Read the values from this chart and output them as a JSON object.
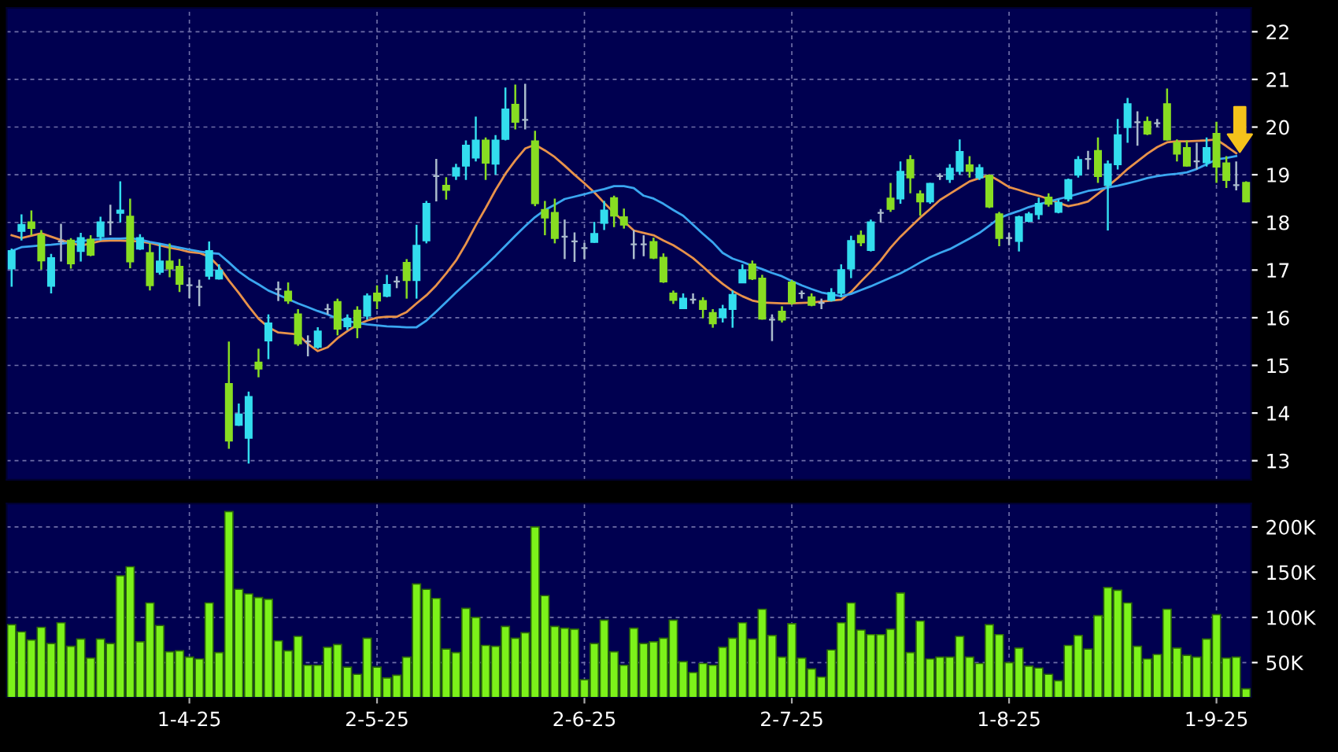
{
  "chart_data": [
    {
      "type": "candlestick",
      "tick_labels": "y",
      "grid": true,
      "ylim": [
        12.6,
        22.5
      ],
      "yticks": [
        13,
        14,
        15,
        16,
        17,
        18,
        19,
        20,
        21,
        22
      ],
      "categories": [
        null,
        null,
        null,
        null,
        null,
        null,
        null,
        null,
        null,
        null,
        null,
        null,
        null,
        null,
        null,
        null,
        null,
        null,
        null,
        null,
        null,
        null,
        null,
        null,
        null,
        null,
        null,
        null,
        null,
        null,
        null,
        null,
        null,
        null,
        null,
        null,
        null,
        null,
        null,
        null,
        null,
        null,
        null,
        null,
        null,
        null,
        null,
        null,
        null,
        null,
        null,
        null,
        null,
        null,
        null,
        null,
        null,
        null,
        null,
        null,
        null,
        null,
        null,
        null,
        null,
        null,
        null,
        null,
        null,
        null,
        null,
        null,
        null,
        null,
        null,
        null,
        null,
        null,
        null,
        null,
        null,
        null,
        null,
        null,
        null,
        null,
        null,
        null,
        null,
        null,
        null,
        null,
        null,
        null,
        null,
        null,
        null,
        null,
        null,
        null,
        null,
        null,
        null,
        null,
        null,
        null,
        null,
        null,
        null,
        null,
        null,
        null,
        null,
        null,
        null,
        null,
        null,
        null,
        null,
        null,
        null,
        null,
        null,
        null,
        null,
        null
      ],
      "ohlc": [
        [
          17.03,
          17.45,
          16.65,
          17.4
        ],
        [
          17.82,
          18.17,
          17.62,
          17.95
        ],
        [
          18.0,
          18.25,
          17.73,
          17.88
        ],
        [
          17.73,
          17.84,
          17.01,
          17.2
        ],
        [
          16.67,
          17.34,
          16.51,
          17.25
        ],
        [
          17.6,
          17.97,
          17.18,
          17.6
        ],
        [
          17.62,
          17.67,
          17.03,
          17.14
        ],
        [
          17.4,
          17.78,
          17.18,
          17.67
        ],
        [
          17.64,
          17.73,
          17.29,
          17.32
        ],
        [
          17.71,
          18.12,
          17.62,
          18.0
        ],
        [
          18.0,
          18.37,
          17.73,
          18.0
        ],
        [
          18.2,
          18.86,
          18.0,
          18.25
        ],
        [
          18.12,
          18.5,
          17.04,
          17.18
        ],
        [
          17.45,
          17.75,
          17.42,
          17.67
        ],
        [
          17.36,
          17.56,
          16.57,
          16.68
        ],
        [
          16.96,
          17.56,
          16.9,
          17.18
        ],
        [
          17.18,
          17.56,
          16.85,
          17.03
        ],
        [
          17.07,
          17.23,
          16.54,
          16.71
        ],
        [
          16.68,
          16.85,
          16.41,
          16.68
        ],
        [
          16.65,
          16.8,
          16.24,
          16.65
        ],
        [
          16.88,
          17.6,
          16.8,
          17.4
        ],
        [
          16.82,
          17.12,
          16.8,
          16.99
        ],
        [
          14.61,
          15.5,
          13.25,
          13.42
        ],
        [
          13.75,
          14.2,
          13.73,
          13.97
        ],
        [
          13.48,
          14.45,
          12.94,
          14.34
        ],
        [
          15.06,
          15.35,
          14.75,
          14.93
        ],
        [
          15.52,
          16.07,
          15.13,
          15.88
        ],
        [
          16.6,
          16.76,
          16.35,
          16.6
        ],
        [
          16.55,
          16.74,
          16.29,
          16.36
        ],
        [
          16.07,
          16.18,
          15.41,
          15.46
        ],
        [
          15.5,
          15.63,
          15.19,
          15.5
        ],
        [
          15.39,
          15.8,
          15.35,
          15.71
        ],
        [
          16.18,
          16.29,
          16.07,
          16.18
        ],
        [
          16.33,
          16.4,
          15.63,
          15.77
        ],
        [
          15.82,
          16.07,
          15.74,
          15.98
        ],
        [
          16.15,
          16.24,
          15.57,
          15.8
        ],
        [
          16.04,
          16.51,
          15.96,
          16.45
        ],
        [
          16.51,
          16.68,
          16.18,
          16.36
        ],
        [
          16.46,
          16.9,
          16.43,
          16.69
        ],
        [
          16.76,
          16.87,
          16.62,
          16.76
        ],
        [
          17.15,
          17.23,
          16.4,
          16.79
        ],
        [
          16.79,
          17.95,
          16.4,
          17.51
        ],
        [
          17.62,
          18.45,
          17.56,
          18.39
        ],
        [
          18.97,
          19.33,
          18.44,
          18.97
        ],
        [
          18.77,
          18.95,
          18.48,
          18.68
        ],
        [
          18.98,
          19.23,
          18.89,
          19.14
        ],
        [
          19.19,
          19.72,
          18.89,
          19.61
        ],
        [
          19.36,
          20.22,
          19.28,
          19.72
        ],
        [
          19.72,
          19.78,
          18.89,
          19.25
        ],
        [
          19.23,
          19.83,
          19.0,
          19.72
        ],
        [
          19.75,
          20.83,
          19.72,
          20.37
        ],
        [
          20.47,
          20.89,
          19.95,
          20.11
        ],
        [
          20.15,
          20.91,
          19.95,
          20.15
        ],
        [
          19.7,
          19.92,
          18.34,
          18.4
        ],
        [
          18.26,
          18.45,
          17.73,
          18.1
        ],
        [
          18.2,
          18.5,
          17.56,
          17.67
        ],
        [
          17.7,
          18.06,
          17.23,
          17.7
        ],
        [
          17.6,
          17.79,
          17.17,
          17.6
        ],
        [
          17.46,
          17.57,
          17.23,
          17.46
        ],
        [
          17.59,
          18.01,
          17.57,
          17.76
        ],
        [
          17.99,
          18.45,
          17.84,
          18.25
        ],
        [
          18.51,
          18.56,
          17.9,
          18.14
        ],
        [
          18.11,
          18.29,
          17.87,
          17.95
        ],
        [
          17.54,
          17.84,
          17.23,
          17.54
        ],
        [
          17.54,
          17.73,
          17.29,
          17.54
        ],
        [
          17.59,
          17.68,
          17.23,
          17.26
        ],
        [
          17.26,
          17.35,
          16.73,
          16.76
        ],
        [
          16.51,
          16.57,
          16.29,
          16.37
        ],
        [
          16.2,
          16.51,
          16.18,
          16.4
        ],
        [
          16.38,
          16.51,
          16.29,
          16.38
        ],
        [
          16.35,
          16.43,
          15.99,
          16.18
        ],
        [
          16.1,
          16.18,
          15.79,
          15.88
        ],
        [
          16.01,
          16.27,
          15.9,
          16.18
        ],
        [
          16.18,
          16.57,
          15.79,
          16.48
        ],
        [
          16.74,
          17.12,
          16.73,
          17.0
        ],
        [
          17.12,
          17.2,
          16.79,
          16.82
        ],
        [
          16.82,
          16.9,
          15.96,
          15.98
        ],
        [
          15.96,
          16.07,
          15.51,
          15.96
        ],
        [
          16.13,
          16.24,
          15.9,
          15.96
        ],
        [
          16.74,
          16.79,
          16.27,
          16.32
        ],
        [
          16.51,
          16.57,
          16.4,
          16.51
        ],
        [
          16.43,
          16.51,
          16.24,
          16.27
        ],
        [
          16.31,
          16.4,
          16.18,
          16.31
        ],
        [
          16.37,
          16.62,
          16.34,
          16.52
        ],
        [
          16.52,
          17.12,
          16.43,
          17.0
        ],
        [
          17.03,
          17.72,
          16.83,
          17.61
        ],
        [
          17.72,
          17.83,
          17.5,
          17.58
        ],
        [
          17.42,
          18.06,
          17.39,
          18.0
        ],
        [
          18.2,
          18.28,
          18.0,
          18.2
        ],
        [
          18.5,
          18.83,
          18.22,
          18.28
        ],
        [
          18.5,
          19.28,
          18.39,
          19.06
        ],
        [
          19.31,
          19.41,
          18.61,
          18.94
        ],
        [
          18.59,
          18.67,
          18.14,
          18.44
        ],
        [
          18.44,
          18.83,
          18.39,
          18.81
        ],
        [
          18.97,
          19.03,
          18.89,
          18.97
        ],
        [
          18.91,
          19.22,
          18.83,
          19.13
        ],
        [
          19.08,
          19.74,
          19.0,
          19.48
        ],
        [
          19.2,
          19.39,
          18.94,
          19.08
        ],
        [
          18.94,
          19.22,
          18.89,
          19.14
        ],
        [
          18.98,
          19.0,
          18.3,
          18.33
        ],
        [
          18.17,
          18.22,
          17.5,
          17.67
        ],
        [
          17.67,
          17.78,
          17.52,
          17.67
        ],
        [
          17.61,
          18.14,
          17.39,
          18.11
        ],
        [
          18.03,
          18.22,
          18.0,
          18.17
        ],
        [
          18.17,
          18.52,
          18.06,
          18.39
        ],
        [
          18.52,
          18.61,
          18.33,
          18.39
        ],
        [
          18.22,
          18.48,
          18.19,
          18.41
        ],
        [
          18.5,
          18.92,
          18.44,
          18.89
        ],
        [
          19.0,
          19.39,
          18.94,
          19.31
        ],
        [
          19.33,
          19.5,
          19.11,
          19.33
        ],
        [
          19.5,
          19.78,
          18.83,
          18.97
        ],
        [
          18.78,
          19.3,
          17.83,
          19.22
        ],
        [
          19.22,
          20.17,
          19.11,
          19.83
        ],
        [
          20.0,
          20.61,
          19.67,
          20.48
        ],
        [
          20.1,
          20.33,
          19.61,
          20.1
        ],
        [
          20.11,
          20.22,
          19.83,
          19.86
        ],
        [
          20.08,
          20.17,
          20.0,
          20.08
        ],
        [
          20.48,
          20.81,
          19.72,
          19.74
        ],
        [
          19.67,
          19.74,
          19.28,
          19.44
        ],
        [
          19.56,
          19.72,
          19.17,
          19.19
        ],
        [
          19.28,
          19.67,
          19.11,
          19.28
        ],
        [
          19.26,
          19.78,
          19.17,
          19.56
        ],
        [
          19.86,
          20.11,
          18.83,
          19.17
        ],
        [
          19.24,
          19.39,
          18.72,
          18.89
        ],
        [
          18.78,
          19.28,
          18.67,
          18.78
        ],
        [
          18.83,
          18.86,
          18.42,
          18.44
        ]
      ],
      "colors": [
        "#33ddee",
        "#33ddee",
        "#88dd22",
        "#88dd22",
        "#33ddee",
        "#aabbcc",
        "#88dd22",
        "#33ddee",
        "#88dd22",
        "#33ddee",
        "#aabbcc",
        "#33ddee",
        "#88dd22",
        "#33ddee",
        "#88dd22",
        "#33ddee",
        "#88dd22",
        "#88dd22",
        "#aabbcc",
        "#aabbcc",
        "#33ddee",
        "#33ddee",
        "#88dd22",
        "#33ddee",
        "#33ddee",
        "#88dd22",
        "#33ddee",
        "#aabbcc",
        "#88dd22",
        "#88dd22",
        "#aabbcc",
        "#33ddee",
        "#aabbcc",
        "#88dd22",
        "#33ddee",
        "#88dd22",
        "#33ddee",
        "#88dd22",
        "#33ddee",
        "#aabbcc",
        "#88dd22",
        "#33ddee",
        "#33ddee",
        "#aabbcc",
        "#88dd22",
        "#33ddee",
        "#33ddee",
        "#33ddee",
        "#88dd22",
        "#33ddee",
        "#33ddee",
        "#88dd22",
        "#aabbcc",
        "#88dd22",
        "#88dd22",
        "#88dd22",
        "#aabbcc",
        "#aabbcc",
        "#aabbcc",
        "#33ddee",
        "#33ddee",
        "#88dd22",
        "#88dd22",
        "#aabbcc",
        "#aabbcc",
        "#88dd22",
        "#88dd22",
        "#88dd22",
        "#33ddee",
        "#aabbcc",
        "#88dd22",
        "#88dd22",
        "#33ddee",
        "#33ddee",
        "#33ddee",
        "#88dd22",
        "#88dd22",
        "#aabbcc",
        "#88dd22",
        "#88dd22",
        "#aabbcc",
        "#88dd22",
        "#aabbcc",
        "#33ddee",
        "#33ddee",
        "#33ddee",
        "#88dd22",
        "#33ddee",
        "#aabbcc",
        "#88dd22",
        "#33ddee",
        "#88dd22",
        "#88dd22",
        "#33ddee",
        "#aabbcc",
        "#33ddee",
        "#33ddee",
        "#88dd22",
        "#33ddee",
        "#88dd22",
        "#88dd22",
        "#aabbcc",
        "#33ddee",
        "#33ddee",
        "#33ddee",
        "#88dd22",
        "#33ddee",
        "#33ddee",
        "#33ddee",
        "#aabbcc",
        "#88dd22",
        "#33ddee",
        "#33ddee",
        "#33ddee",
        "#aabbcc",
        "#88dd22",
        "#aabbcc",
        "#88dd22",
        "#88dd22",
        "#88dd22",
        "#aabbcc",
        "#33ddee",
        "#88dd22",
        "#88dd22",
        "#aabbcc",
        "#88dd22"
      ],
      "series": [
        {
          "type": "line",
          "color": "#e8924a",
          "values": [
            17.73,
            17.67,
            17.72,
            17.77,
            17.7,
            17.63,
            17.57,
            17.51,
            17.56,
            17.61,
            17.62,
            17.62,
            17.61,
            17.6,
            17.57,
            17.52,
            17.47,
            17.43,
            17.38,
            17.36,
            17.28,
            17.07,
            16.78,
            16.52,
            16.24,
            15.98,
            15.8,
            15.69,
            15.67,
            15.65,
            15.45,
            15.3,
            15.38,
            15.57,
            15.72,
            15.85,
            15.94,
            16.0,
            16.02,
            16.02,
            16.12,
            16.3,
            16.47,
            16.68,
            16.93,
            17.2,
            17.55,
            17.94,
            18.3,
            18.68,
            19.02,
            19.3,
            19.55,
            19.63,
            19.51,
            19.37,
            19.19,
            19.0,
            18.82,
            18.63,
            18.41,
            18.2,
            18.02,
            17.83,
            17.78,
            17.73,
            17.62,
            17.52,
            17.39,
            17.25,
            17.07,
            16.88,
            16.71,
            16.56,
            16.45,
            16.36,
            16.32,
            16.31,
            16.3,
            16.3,
            16.31,
            16.32,
            16.34,
            16.36,
            16.38,
            16.54,
            16.76,
            16.97,
            17.2,
            17.47,
            17.7,
            17.9,
            18.1,
            18.28,
            18.47,
            18.6,
            18.73,
            18.86,
            18.93,
            18.99,
            18.87,
            18.74,
            18.68,
            18.61,
            18.56,
            18.49,
            18.41,
            18.34,
            18.38,
            18.44,
            18.6,
            18.76,
            18.93,
            19.12,
            19.28,
            19.44,
            19.58,
            19.68,
            19.7,
            19.7,
            19.71,
            19.72,
            19.74,
            19.6,
            19.45,
            null
          ]
        },
        {
          "type": "line",
          "color": "#3aa6f0",
          "values": [
            17.4,
            17.48,
            17.5,
            17.52,
            17.53,
            17.55,
            17.58,
            17.61,
            17.63,
            17.65,
            17.66,
            17.66,
            17.67,
            17.64,
            17.59,
            17.55,
            17.51,
            17.47,
            17.43,
            17.39,
            17.36,
            17.34,
            17.16,
            16.97,
            16.82,
            16.7,
            16.57,
            16.48,
            16.39,
            16.3,
            16.22,
            16.14,
            16.07,
            15.98,
            15.93,
            15.89,
            15.86,
            15.84,
            15.82,
            15.81,
            15.8,
            15.8,
            15.94,
            16.13,
            16.33,
            16.53,
            16.72,
            16.91,
            17.1,
            17.3,
            17.51,
            17.72,
            17.92,
            18.11,
            18.26,
            18.37,
            18.49,
            18.54,
            18.59,
            18.65,
            18.7,
            18.76,
            18.76,
            18.72,
            18.56,
            18.5,
            18.39,
            18.26,
            18.14,
            17.95,
            17.76,
            17.58,
            17.36,
            17.24,
            17.17,
            17.09,
            17.02,
            16.94,
            16.87,
            16.77,
            16.68,
            16.6,
            16.53,
            16.49,
            16.45,
            16.5,
            16.58,
            16.66,
            16.75,
            16.84,
            16.93,
            17.04,
            17.16,
            17.27,
            17.36,
            17.44,
            17.55,
            17.66,
            17.78,
            17.93,
            18.09,
            18.17,
            18.24,
            18.32,
            18.38,
            18.43,
            18.49,
            18.54,
            18.6,
            18.66,
            18.69,
            18.73,
            18.77,
            18.82,
            18.87,
            18.93,
            18.97,
            19.0,
            19.02,
            19.05,
            19.12,
            19.22,
            19.32,
            19.35,
            19.39,
            null
          ]
        }
      ]
    },
    {
      "type": "bar",
      "grid": true,
      "color": "#7cf21a",
      "ylim": [
        12000,
        226000
      ],
      "yticks": [
        {
          "value": 50000,
          "label": "50K"
        },
        {
          "value": 100000,
          "label": "100K"
        },
        {
          "value": 150000,
          "label": "150K"
        },
        {
          "value": 200000,
          "label": "200K"
        }
      ],
      "categories": [
        null,
        null,
        null,
        null,
        null,
        null,
        null,
        null,
        null,
        null,
        null,
        null,
        null,
        null,
        null,
        null,
        null,
        null,
        "1-4-25",
        null,
        null,
        null,
        null,
        null,
        null,
        null,
        null,
        null,
        null,
        null,
        null,
        null,
        null,
        null,
        null,
        null,
        null,
        "2-5-25",
        null,
        null,
        null,
        null,
        null,
        null,
        null,
        null,
        null,
        null,
        null,
        null,
        null,
        null,
        null,
        null,
        null,
        null,
        null,
        null,
        "2-6-25",
        null,
        null,
        null,
        null,
        null,
        null,
        null,
        null,
        null,
        null,
        null,
        null,
        null,
        null,
        null,
        null,
        null,
        null,
        null,
        null,
        "2-7-25",
        null,
        null,
        null,
        null,
        null,
        null,
        null,
        null,
        null,
        null,
        null,
        null,
        null,
        null,
        null,
        null,
        null,
        null,
        null,
        null,
        null,
        "1-8-25",
        null,
        null,
        null,
        null,
        null,
        null,
        null,
        null,
        null,
        null,
        null,
        null,
        null,
        null,
        null,
        null,
        null,
        null,
        null,
        null,
        "1-9-25",
        null,
        null,
        null
      ],
      "values": [
        92000,
        84000,
        75000,
        89000,
        71000,
        94000,
        68000,
        76000,
        55000,
        76000,
        71000,
        146000,
        156000,
        73000,
        116000,
        91000,
        62000,
        63000,
        56000,
        54000,
        116000,
        61000,
        217000,
        131000,
        126000,
        122000,
        120000,
        74000,
        63000,
        79000,
        47000,
        47000,
        67000,
        70000,
        45000,
        37000,
        77000,
        45000,
        33000,
        36000,
        56000,
        137000,
        131000,
        121000,
        65000,
        61000,
        110000,
        100000,
        69000,
        68000,
        90000,
        77000,
        83000,
        200000,
        124000,
        90000,
        88000,
        87000,
        31000,
        71000,
        97000,
        62000,
        47000,
        88000,
        71000,
        73000,
        77000,
        97000,
        51000,
        39000,
        49000,
        47000,
        67000,
        77000,
        94000,
        76000,
        109000,
        80000,
        56000,
        93000,
        55000,
        43000,
        34000,
        64000,
        94000,
        116000,
        86000,
        81000,
        81000,
        87000,
        127000,
        61000,
        96000,
        54000,
        56000,
        56000,
        79000,
        56000,
        49000,
        92000,
        81000,
        50000,
        66000,
        46000,
        44000,
        37000,
        30000,
        69000,
        80000,
        65000,
        102000,
        133000,
        130000,
        116000,
        68000,
        54000,
        59000,
        109000,
        66000,
        58000,
        56000,
        76000,
        103000,
        55000,
        56000,
        21000
      ]
    }
  ]
}
